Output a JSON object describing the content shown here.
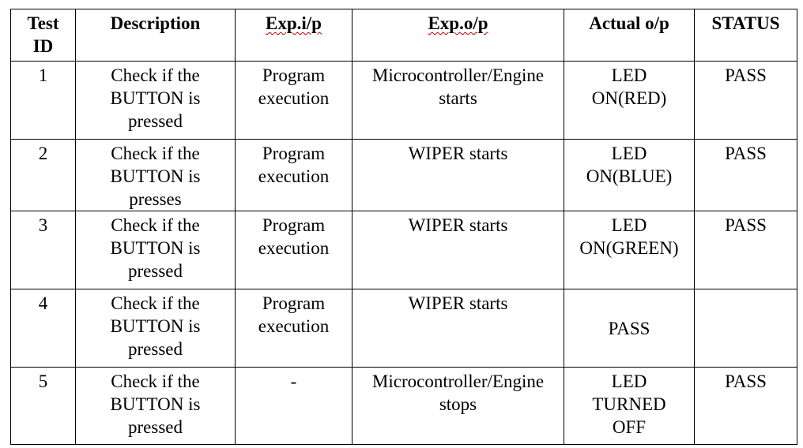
{
  "table": {
    "headers": {
      "test_id": [
        "Test",
        "ID"
      ],
      "description": "Description",
      "exp_input": "Exp.i/p",
      "exp_output": "Exp.o/p",
      "actual_output": "Actual o/p",
      "status": "STATUS"
    },
    "rows": [
      {
        "id": "1",
        "description": [
          "Check if the",
          "BUTTON is",
          "pressed"
        ],
        "exp_input": [
          "Program",
          "execution"
        ],
        "exp_output": [
          "Microcontroller/Engine",
          "starts"
        ],
        "actual_output": [
          "LED",
          "ON(RED)"
        ],
        "status": "PASS"
      },
      {
        "id": "2",
        "description": [
          "Check if the",
          "BUTTON is",
          "presses"
        ],
        "exp_input": [
          "Program",
          "execution"
        ],
        "exp_output": [
          "WIPER starts"
        ],
        "actual_output": [
          "LED",
          "ON(BLUE)"
        ],
        "status": "PASS"
      },
      {
        "id": "3",
        "description": [
          "Check if the",
          "BUTTON is",
          "pressed"
        ],
        "exp_input": [
          "Program",
          "execution"
        ],
        "exp_output": [
          "WIPER starts"
        ],
        "actual_output": [
          "LED",
          "ON(GREEN)"
        ],
        "status": "PASS"
      },
      {
        "id": "4",
        "description": [
          "Check if the",
          "BUTTON is",
          "pressed"
        ],
        "exp_input": [
          "Program",
          "execution"
        ],
        "exp_output": [
          "WIPER starts"
        ],
        "actual_output": [
          "PASS"
        ],
        "status": ""
      },
      {
        "id": "5",
        "description": [
          "Check if the",
          "BUTTON is",
          "pressed"
        ],
        "exp_input": [
          "-"
        ],
        "exp_output": [
          "Microcontroller/Engine",
          "stops"
        ],
        "actual_output": [
          "LED",
          "TURNED",
          "OFF"
        ],
        "status": "PASS"
      }
    ]
  }
}
